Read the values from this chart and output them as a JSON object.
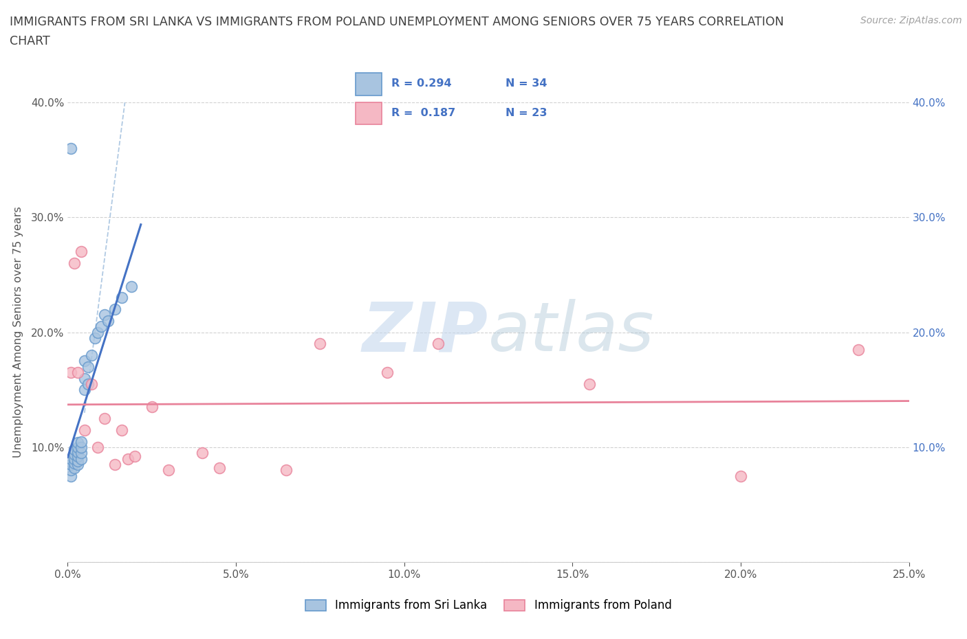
{
  "title_line1": "IMMIGRANTS FROM SRI LANKA VS IMMIGRANTS FROM POLAND UNEMPLOYMENT AMONG SENIORS OVER 75 YEARS CORRELATION",
  "title_line2": "CHART",
  "source_text": "Source: ZipAtlas.com",
  "ylabel": "Unemployment Among Seniors over 75 years",
  "background_color": "#ffffff",
  "watermark_zip": "ZIP",
  "watermark_atlas": "atlas",
  "legend_sri_lanka_R": 0.294,
  "legend_sri_lanka_N": 34,
  "legend_poland_R": 0.187,
  "legend_poland_N": 23,
  "xlim": [
    0.0,
    0.25
  ],
  "ylim": [
    0.0,
    0.4
  ],
  "xticks": [
    0.0,
    0.05,
    0.1,
    0.15,
    0.2,
    0.25
  ],
  "yticks": [
    0.0,
    0.1,
    0.2,
    0.3,
    0.4
  ],
  "sri_lanka_x": [
    0.001,
    0.001,
    0.001,
    0.001,
    0.002,
    0.002,
    0.002,
    0.002,
    0.002,
    0.003,
    0.003,
    0.003,
    0.003,
    0.003,
    0.003,
    0.004,
    0.004,
    0.004,
    0.004,
    0.005,
    0.005,
    0.005,
    0.006,
    0.006,
    0.007,
    0.008,
    0.009,
    0.01,
    0.011,
    0.012,
    0.014,
    0.016,
    0.019,
    0.001
  ],
  "sri_lanka_y": [
    0.075,
    0.08,
    0.085,
    0.09,
    0.082,
    0.086,
    0.09,
    0.094,
    0.098,
    0.085,
    0.088,
    0.092,
    0.096,
    0.1,
    0.104,
    0.09,
    0.095,
    0.1,
    0.105,
    0.15,
    0.16,
    0.175,
    0.155,
    0.17,
    0.18,
    0.195,
    0.2,
    0.205,
    0.215,
    0.21,
    0.22,
    0.23,
    0.24,
    0.36
  ],
  "poland_x": [
    0.001,
    0.002,
    0.003,
    0.004,
    0.005,
    0.007,
    0.009,
    0.011,
    0.014,
    0.016,
    0.018,
    0.02,
    0.025,
    0.03,
    0.04,
    0.045,
    0.065,
    0.075,
    0.095,
    0.11,
    0.155,
    0.2,
    0.235
  ],
  "poland_y": [
    0.165,
    0.26,
    0.165,
    0.27,
    0.115,
    0.155,
    0.1,
    0.125,
    0.085,
    0.115,
    0.09,
    0.092,
    0.135,
    0.08,
    0.095,
    0.082,
    0.08,
    0.19,
    0.165,
    0.19,
    0.155,
    0.075,
    0.185
  ],
  "sri_lanka_line_color": "#4472c4",
  "poland_line_color": "#e8829a",
  "sri_lanka_dot_color": "#a8c4e0",
  "poland_dot_color": "#f5b8c4",
  "sri_lanka_dot_edge": "#6699cc",
  "poland_dot_edge": "#e8829a",
  "grid_color": "#d0d0d0",
  "title_color": "#404040",
  "source_color": "#a0a0a0",
  "dashed_line_color": "#a8c4e0"
}
